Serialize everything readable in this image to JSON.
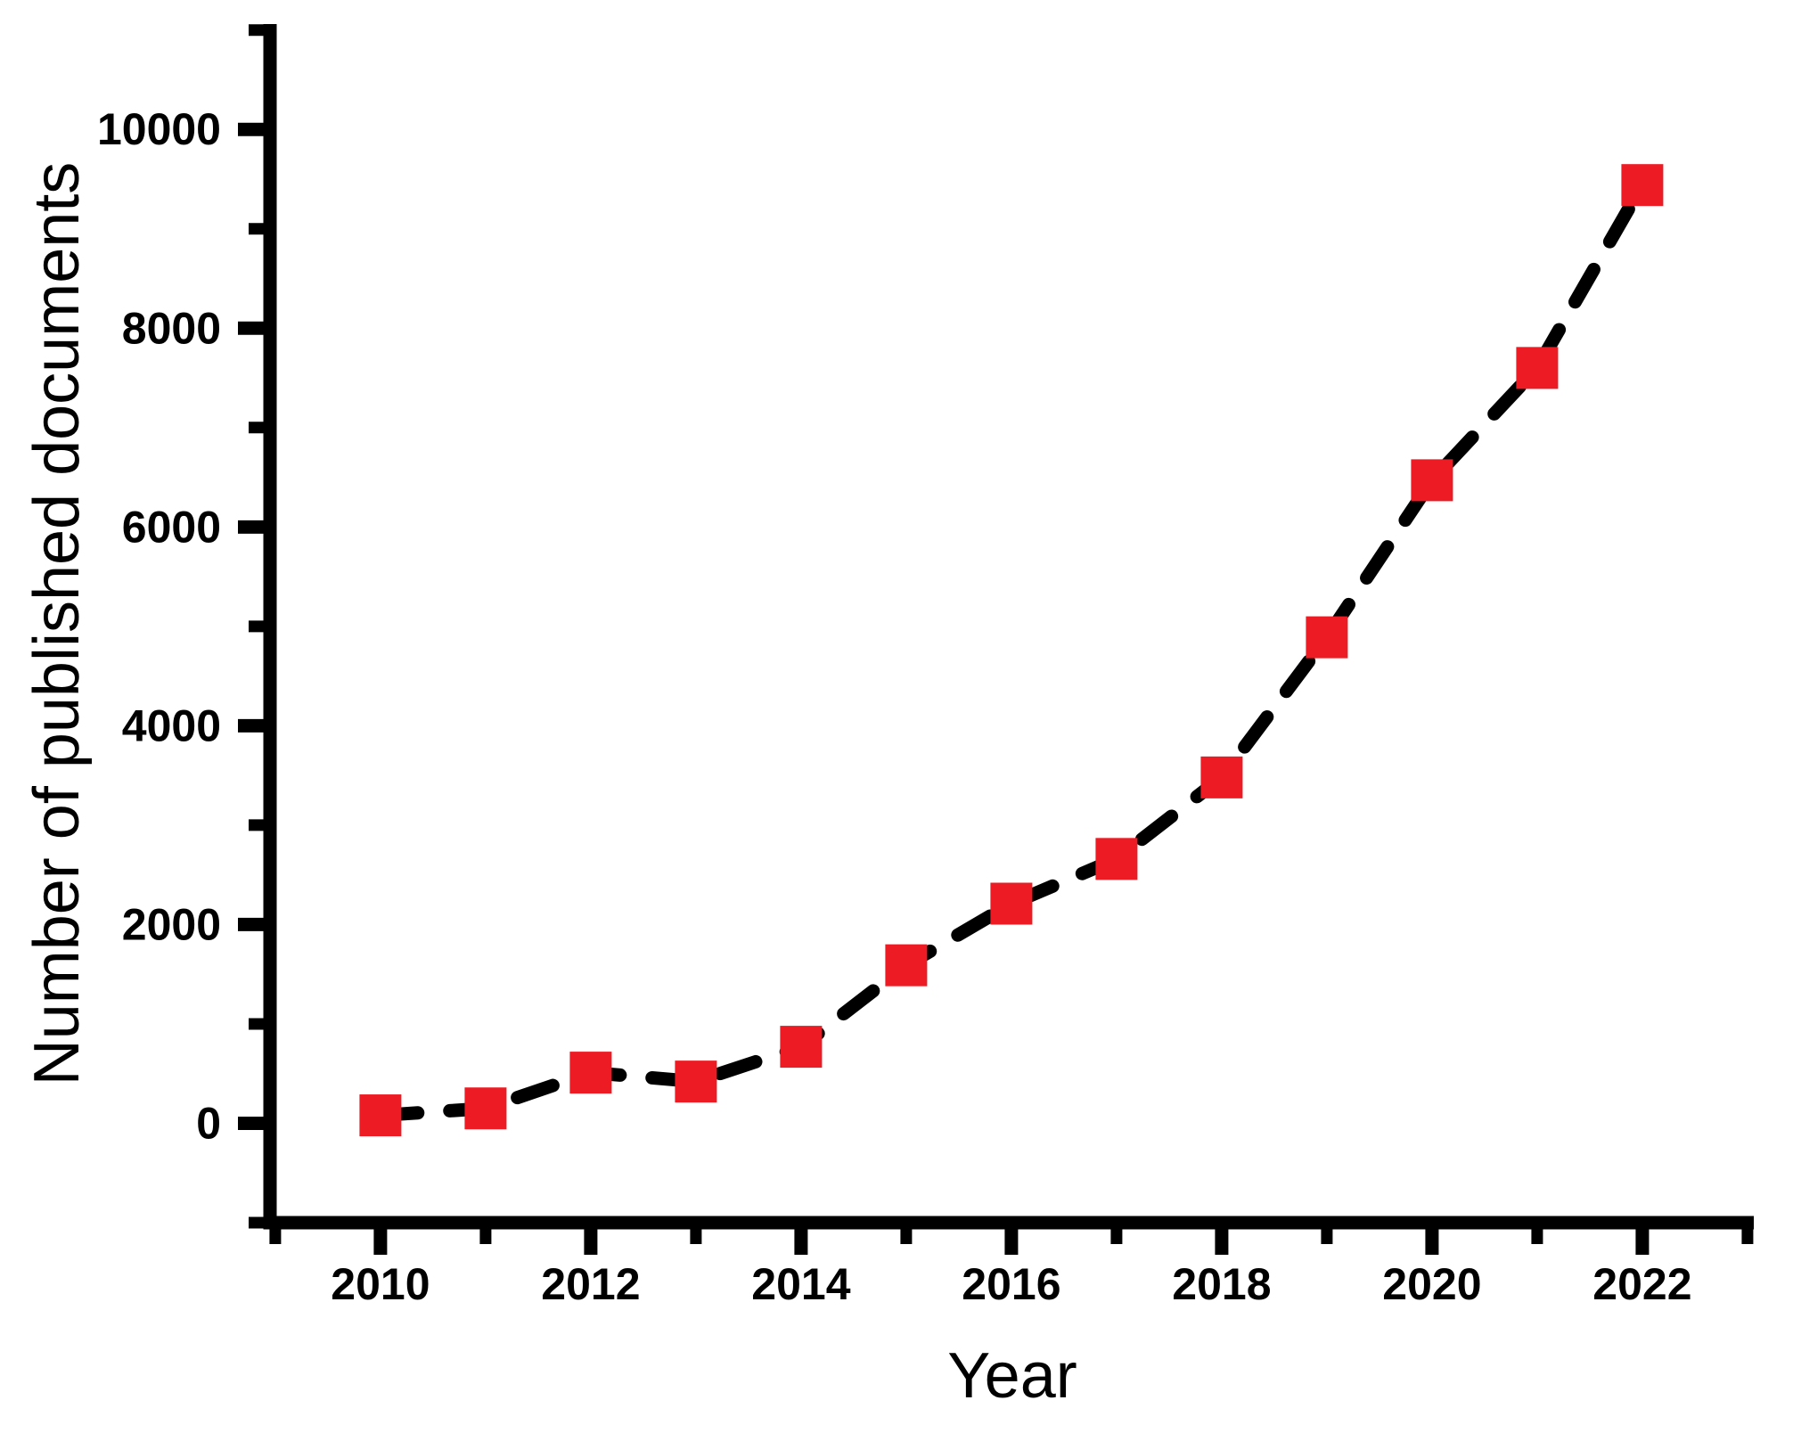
{
  "page": {
    "background_color": "#ffffff"
  },
  "chart_data": {
    "type": "line",
    "title": "",
    "xlabel": "Year",
    "ylabel": "Number of published documents",
    "x": [
      2010,
      2011,
      2012,
      2013,
      2014,
      2015,
      2016,
      2017,
      2018,
      2019,
      2020,
      2021,
      2022
    ],
    "series": [
      {
        "name": "Number of published documents",
        "values": [
          80,
          150,
          510,
          420,
          770,
          1590,
          2210,
          2660,
          3480,
          4890,
          6470,
          7600,
          9440
        ],
        "line_color": "#000000",
        "line_style": "dashed",
        "line_width": 15,
        "marker": "square",
        "marker_color": "#ed1c24",
        "marker_size": 47
      }
    ],
    "xlim": [
      2008.95,
      2023.06
    ],
    "ylim": [
      -1000,
      11060
    ],
    "grid": false,
    "legend": "none",
    "axis_color": "#000000",
    "x_axis": {
      "major_ticks": [
        2010,
        2012,
        2014,
        2016,
        2018,
        2020,
        2022
      ],
      "tick_labels": [
        "2010",
        "2012",
        "2014",
        "2016",
        "2018",
        "2020",
        "2022"
      ],
      "minor_ticks": [
        2009,
        2011,
        2013,
        2015,
        2017,
        2019,
        2021,
        2023
      ]
    },
    "y_axis": {
      "major_ticks": [
        0,
        2000,
        4000,
        6000,
        8000,
        10000
      ],
      "tick_labels": [
        "0",
        "2000",
        "4000",
        "6000",
        "8000",
        "10000"
      ],
      "minor_ticks": [
        -1000,
        1000,
        3000,
        5000,
        7000,
        9000,
        11000
      ]
    }
  }
}
